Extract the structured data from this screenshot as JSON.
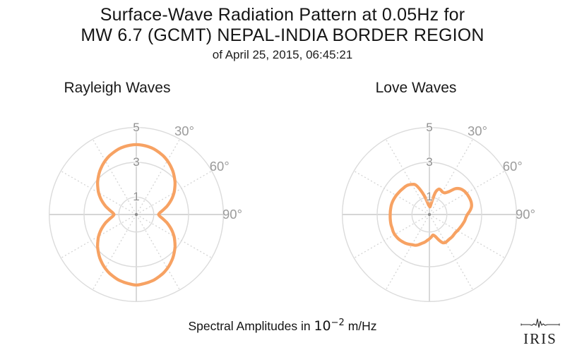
{
  "title": {
    "line1": "Surface-Wave Radiation Pattern at 0.05Hz for",
    "line2": "MW 6.7 (GCMT) NEPAL-INDIA BORDER REGION",
    "line3": "of April 25, 2015, 06:45:21"
  },
  "footer": {
    "prefix": "Spectral Amplitudes in ",
    "base": "10",
    "exponent": "−2",
    "suffix": " m/Hz"
  },
  "logo": {
    "text": "IRIS"
  },
  "colors": {
    "curve": "#F7A263",
    "grid_circle": "#DBDBDB",
    "axis_line": "#C9C9C9",
    "spoke_dotted": "#D5D5D5",
    "center_dot": "#8E8E8E",
    "tick_label": "#8F8F8F",
    "angle_label": "#9B9B9B",
    "title_text": "#151515"
  },
  "chart_data": [
    {
      "type": "line",
      "polar": true,
      "title": "Rayleigh Waves",
      "amplitude_units": "1e-2 m/Hz",
      "theta_convention": "degrees clockwise from top (azimuth)",
      "theta_start_deg": 0,
      "theta_step_deg": 5,
      "r_axis": {
        "ticks": [
          1,
          3,
          5
        ],
        "tick_labels": [
          "1",
          "3",
          "5"
        ],
        "max": 5
      },
      "angle_axis": {
        "labels": [
          "30°",
          "60°",
          "90°"
        ],
        "degrees": [
          30,
          60,
          90
        ],
        "label_radius_px": 136
      },
      "r_values": [
        4.02,
        4.0,
        3.96,
        3.9,
        3.8,
        3.7,
        3.57,
        3.42,
        3.26,
        3.08,
        2.9,
        2.7,
        2.5,
        2.28,
        2.05,
        1.82,
        1.58,
        1.38,
        1.28,
        1.38,
        1.58,
        1.82,
        2.05,
        2.28,
        2.5,
        2.7,
        2.9,
        3.08,
        3.26,
        3.42,
        3.57,
        3.7,
        3.8,
        3.9,
        3.96,
        4.01,
        4.05,
        4.01,
        3.96,
        3.9,
        3.8,
        3.7,
        3.57,
        3.42,
        3.26,
        3.08,
        2.9,
        2.7,
        2.5,
        2.28,
        2.05,
        1.82,
        1.58,
        1.38,
        1.28,
        1.38,
        1.58,
        1.82,
        2.05,
        2.28,
        2.5,
        2.7,
        2.9,
        3.08,
        3.26,
        3.42,
        3.57,
        3.7,
        3.8,
        3.9,
        3.96,
        4.0
      ]
    },
    {
      "type": "line",
      "polar": true,
      "title": "Love Waves",
      "amplitude_units": "1e-2 m/Hz",
      "theta_convention": "degrees clockwise from top (azimuth)",
      "theta_start_deg": 0,
      "theta_step_deg": 5,
      "r_axis": {
        "ticks": [
          1,
          3,
          5
        ],
        "tick_labels": [
          "1",
          "3",
          "5"
        ],
        "max": 5
      },
      "angle_axis": {
        "labels": [
          "30°",
          "60°",
          "90°"
        ],
        "degrees": [
          30,
          60,
          90
        ],
        "label_radius_px": 136
      },
      "r_values": [
        0.48,
        0.45,
        0.7,
        1.3,
        1.55,
        1.55,
        1.5,
        1.52,
        1.7,
        2.1,
        2.3,
        2.4,
        2.45,
        2.48,
        2.5,
        2.5,
        2.45,
        2.33,
        2.18,
        2.1,
        2.06,
        2.0,
        1.95,
        1.9,
        1.86,
        1.82,
        1.82,
        1.83,
        1.82,
        1.83,
        1.85,
        1.78,
        1.55,
        1.3,
        1.2,
        1.3,
        1.4,
        1.5,
        1.62,
        1.72,
        1.85,
        1.95,
        2.0,
        2.08,
        2.15,
        2.2,
        2.25,
        2.28,
        2.3,
        2.3,
        2.28,
        2.28,
        2.27,
        2.26,
        2.25,
        2.25,
        2.25,
        2.25,
        2.24,
        2.22,
        2.2,
        2.17,
        2.15,
        2.13,
        2.12,
        2.08,
        2.0,
        1.88,
        1.5,
        1.1,
        0.75,
        0.55
      ]
    }
  ]
}
